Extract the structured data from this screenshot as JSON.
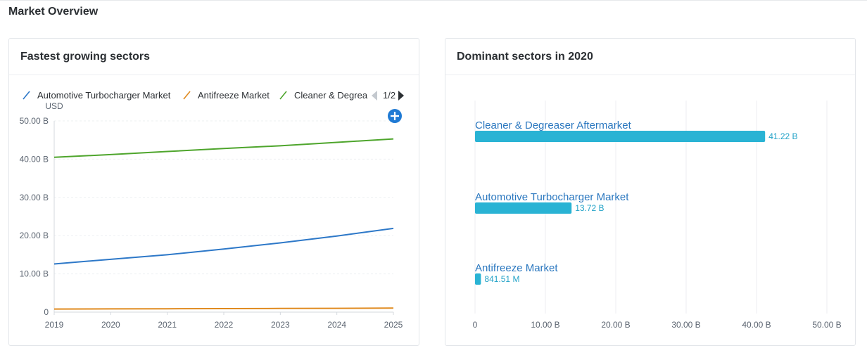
{
  "page": {
    "title": "Market Overview"
  },
  "charts": {
    "left": {
      "title": "Fastest growing sectors",
      "legend_page": "1/2",
      "y_unit": "USD",
      "add_icon": "plus-circle-icon",
      "prev_icon": "triangle-left-icon",
      "next_icon": "triangle-right-icon"
    },
    "right": {
      "title": "Dominant sectors in 2020"
    }
  },
  "chart_data": [
    {
      "type": "line",
      "title": "Fastest growing sectors",
      "ylabel": "USD",
      "xlabel": "",
      "x": [
        "2019",
        "2020",
        "2021",
        "2022",
        "2023",
        "2024",
        "2025"
      ],
      "ylim": [
        0,
        50
      ],
      "y_ticks": [
        "0",
        "10.00 B",
        "20.00 B",
        "30.00 B",
        "40.00 B",
        "50.00 B"
      ],
      "legend_position": "top",
      "grid": true,
      "series": [
        {
          "name": "Automotive Turbocharger Market",
          "legend_label": "Automotive Turbocharger Market",
          "color": "#2d78c8",
          "values": [
            12.6,
            13.8,
            15.0,
            16.5,
            18.1,
            19.9,
            21.9
          ]
        },
        {
          "name": "Antifreeze Market",
          "legend_label": "Antifreeze Market",
          "color": "#e08a1e",
          "values": [
            0.8,
            0.84,
            0.88,
            0.92,
            0.96,
            1.0,
            1.06
          ]
        },
        {
          "name": "Cleaner & Degreaser Aftermarket",
          "legend_label": "Cleaner & Degrea",
          "color": "#4ea52c",
          "values": [
            40.5,
            41.2,
            42.0,
            42.8,
            43.5,
            44.4,
            45.3
          ]
        }
      ]
    },
    {
      "type": "bar",
      "orientation": "horizontal",
      "title": "Dominant sectors in 2020",
      "xlim": [
        0,
        50
      ],
      "x_ticks": [
        "0",
        "10.00 B",
        "20.00 B",
        "30.00 B",
        "40.00 B",
        "50.00 B"
      ],
      "grid": true,
      "color": "#29b3d4",
      "categories": [
        "Cleaner & Degreaser Aftermarket",
        "Automotive Turbocharger Market",
        "Antifreeze Market"
      ],
      "values": [
        41.22,
        13.72,
        0.84151
      ],
      "value_labels": [
        "41.22 B",
        "13.72 B",
        "841.51 M"
      ]
    }
  ]
}
